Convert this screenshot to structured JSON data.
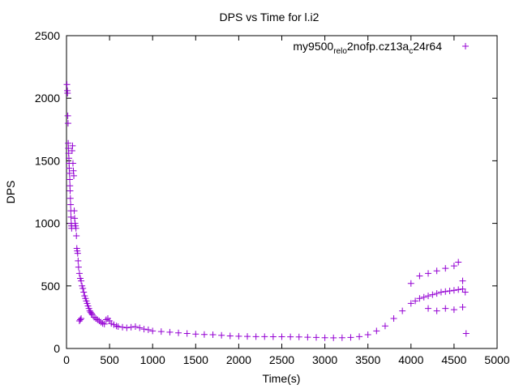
{
  "chart_data": {
    "type": "scatter",
    "title": "DPS vs Time for l.i2",
    "xlabel": "Time(s)",
    "ylabel": "DPS",
    "xlim": [
      0,
      5000
    ],
    "ylim": [
      0,
      2500
    ],
    "x_ticks": [
      0,
      500,
      1000,
      1500,
      2000,
      2500,
      3000,
      3500,
      4000,
      4500,
      5000
    ],
    "y_ticks": [
      0,
      500,
      1000,
      1500,
      2000,
      2500
    ],
    "grid": false,
    "legend_position": "top-right",
    "marker": "plus",
    "series": [
      {
        "name_parts": [
          {
            "text": "my9500",
            "sub": false
          },
          {
            "text": "rel",
            "sub": true
          },
          {
            "text": "o",
            "sub": true
          },
          {
            "text": "2nofp.cz13a",
            "sub": false
          },
          {
            "text": "c",
            "sub": true
          },
          {
            "text": "24r64",
            "sub": false
          }
        ],
        "color": "#9400d3",
        "points": [
          [
            5,
            2110
          ],
          [
            10,
            2060
          ],
          [
            12,
            2040
          ],
          [
            15,
            1860
          ],
          [
            18,
            1800
          ],
          [
            20,
            1640
          ],
          [
            22,
            1600
          ],
          [
            25,
            1560
          ],
          [
            28,
            1520
          ],
          [
            30,
            1480
          ],
          [
            32,
            1440
          ],
          [
            35,
            1400
          ],
          [
            38,
            1350
          ],
          [
            40,
            1300
          ],
          [
            42,
            1260
          ],
          [
            45,
            1200
          ],
          [
            48,
            1150
          ],
          [
            50,
            1100
          ],
          [
            52,
            1050
          ],
          [
            55,
            1000
          ],
          [
            58,
            980
          ],
          [
            60,
            960
          ],
          [
            65,
            1580
          ],
          [
            70,
            1620
          ],
          [
            75,
            1480
          ],
          [
            80,
            1420
          ],
          [
            85,
            1380
          ],
          [
            90,
            1100
          ],
          [
            95,
            1040
          ],
          [
            100,
            1000
          ],
          [
            105,
            980
          ],
          [
            110,
            960
          ],
          [
            115,
            900
          ],
          [
            120,
            800
          ],
          [
            125,
            780
          ],
          [
            130,
            760
          ],
          [
            135,
            700
          ],
          [
            140,
            650
          ],
          [
            150,
            600
          ],
          [
            160,
            560
          ],
          [
            170,
            540
          ],
          [
            180,
            500
          ],
          [
            190,
            480
          ],
          [
            200,
            450
          ],
          [
            210,
            420
          ],
          [
            220,
            400
          ],
          [
            230,
            380
          ],
          [
            240,
            360
          ],
          [
            250,
            340
          ],
          [
            260,
            320
          ],
          [
            270,
            300
          ],
          [
            280,
            290
          ],
          [
            290,
            280
          ],
          [
            300,
            270
          ],
          [
            320,
            250
          ],
          [
            340,
            240
          ],
          [
            360,
            230
          ],
          [
            380,
            220
          ],
          [
            400,
            210
          ],
          [
            420,
            200
          ],
          [
            440,
            195
          ],
          [
            460,
            230
          ],
          [
            480,
            240
          ],
          [
            500,
            220
          ],
          [
            520,
            200
          ],
          [
            550,
            190
          ],
          [
            580,
            180
          ],
          [
            600,
            175
          ],
          [
            650,
            170
          ],
          [
            700,
            165
          ],
          [
            750,
            170
          ],
          [
            800,
            175
          ],
          [
            850,
            165
          ],
          [
            900,
            155
          ],
          [
            950,
            150
          ],
          [
            1000,
            140
          ],
          [
            1100,
            135
          ],
          [
            1200,
            130
          ],
          [
            1300,
            125
          ],
          [
            1400,
            120
          ],
          [
            1500,
            115
          ],
          [
            1600,
            112
          ],
          [
            1700,
            110
          ],
          [
            1800,
            105
          ],
          [
            1900,
            100
          ],
          [
            2000,
            98
          ],
          [
            2100,
            96
          ],
          [
            2200,
            95
          ],
          [
            2300,
            95
          ],
          [
            2400,
            94
          ],
          [
            2500,
            94
          ],
          [
            2600,
            93
          ],
          [
            2700,
            92
          ],
          [
            2800,
            90
          ],
          [
            2900,
            88
          ],
          [
            3000,
            86
          ],
          [
            3100,
            85
          ],
          [
            3200,
            86
          ],
          [
            3300,
            88
          ],
          [
            3400,
            95
          ],
          [
            3500,
            110
          ],
          [
            3600,
            140
          ],
          [
            3700,
            180
          ],
          [
            3800,
            240
          ],
          [
            3900,
            300
          ],
          [
            4000,
            360
          ],
          [
            4050,
            380
          ],
          [
            4100,
            400
          ],
          [
            4150,
            410
          ],
          [
            4200,
            420
          ],
          [
            4250,
            430
          ],
          [
            4300,
            440
          ],
          [
            4350,
            450
          ],
          [
            4400,
            455
          ],
          [
            4450,
            460
          ],
          [
            4500,
            465
          ],
          [
            4550,
            470
          ],
          [
            4600,
            475
          ],
          [
            4630,
            450
          ],
          [
            4640,
            120
          ],
          [
            4000,
            520
          ],
          [
            4100,
            580
          ],
          [
            4200,
            600
          ],
          [
            4300,
            620
          ],
          [
            4400,
            640
          ],
          [
            4500,
            660
          ],
          [
            4550,
            690
          ],
          [
            4600,
            540
          ],
          [
            4200,
            320
          ],
          [
            4300,
            300
          ],
          [
            4400,
            320
          ],
          [
            4500,
            310
          ],
          [
            4600,
            330
          ],
          [
            150,
            220
          ],
          [
            160,
            230
          ],
          [
            170,
            240
          ]
        ]
      }
    ]
  }
}
